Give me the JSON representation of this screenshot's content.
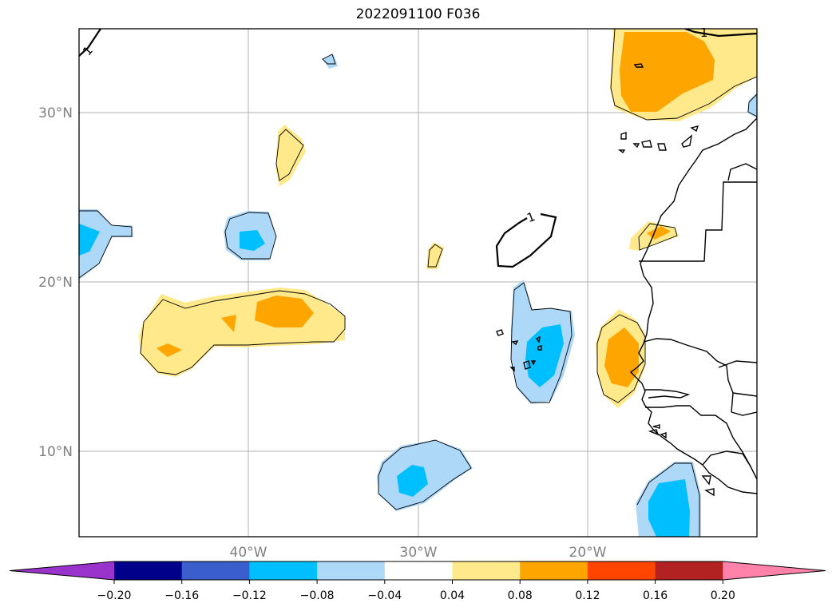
{
  "title": "2022091100 F036",
  "map": {
    "lat_ticks": [
      "30°N",
      "20°N",
      "10°N"
    ],
    "lon_ticks": [
      "40°W",
      "30°W",
      "20°W"
    ],
    "contour_label": "1",
    "extent": {
      "lon_min": -50,
      "lon_max": -10,
      "lat_min": 5,
      "lat_max": 35
    },
    "gridlines": true
  },
  "colorbar": {
    "colors": [
      "#9933cc",
      "#00008b",
      "#3a5fcd",
      "#00bfff",
      "#add8f8",
      "#ffffff",
      "#ffe98a",
      "#ffa500",
      "#ff4500",
      "#b22222",
      "#ff82ab"
    ],
    "tick_labels": [
      "−0.20",
      "−0.16",
      "−0.12",
      "−0.08",
      "−0.04",
      "0.04",
      "0.08",
      "0.12",
      "0.16",
      "0.20"
    ],
    "extend": "both"
  },
  "legend_colors": {
    "light_blue": "#add8f8",
    "blue": "#00bfff",
    "light_yellow": "#ffe98a",
    "orange": "#ffa500"
  }
}
